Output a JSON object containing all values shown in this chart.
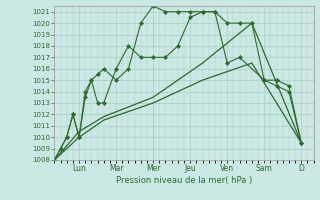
{
  "bg_color": "#cce8e4",
  "grid_color": "#aaccc8",
  "line_color": "#2d6a2d",
  "xlabel": "Pression niveau de la mer( hPa )",
  "ylim": [
    1008,
    1021.5
  ],
  "yticks": [
    1008,
    1009,
    1010,
    1011,
    1012,
    1013,
    1014,
    1015,
    1016,
    1017,
    1018,
    1019,
    1020,
    1021
  ],
  "day_labels": [
    "Lun",
    "Mar",
    "Mer",
    "Jeu",
    "Ven",
    "Sam",
    "D"
  ],
  "day_positions": [
    24,
    60,
    96,
    132,
    168,
    204,
    240
  ],
  "xlim": [
    0,
    252
  ],
  "series": [
    {
      "x": [
        0,
        6,
        12,
        18,
        24,
        30,
        36,
        42,
        48,
        60,
        72,
        84,
        96,
        108,
        120,
        132,
        144,
        156,
        168,
        180,
        192,
        204,
        216,
        228,
        240
      ],
      "y": [
        1008,
        1009,
        1010,
        1012,
        1010,
        1014,
        1015,
        1013,
        1013,
        1016,
        1018,
        1017,
        1017,
        1017,
        1018,
        1020.5,
        1021,
        1021,
        1020,
        1020,
        1020,
        1015,
        1015,
        1014.5,
        1009.5
      ],
      "marker": "D",
      "markersize": 2.0,
      "linewidth": 0.8
    },
    {
      "x": [
        0,
        6,
        12,
        18,
        24,
        30,
        36,
        42,
        48,
        60,
        72,
        84,
        96,
        108,
        120,
        132,
        144,
        156,
        168,
        180,
        204,
        216,
        228,
        240
      ],
      "y": [
        1008,
        1009,
        1010,
        1012,
        1010,
        1013.5,
        1015,
        1015.5,
        1016,
        1015,
        1016,
        1020,
        1021.5,
        1021,
        1021,
        1021,
        1021,
        1021,
        1016.5,
        1017,
        1015,
        1014.5,
        1014,
        1009.5
      ],
      "marker": "D",
      "markersize": 2.0,
      "linewidth": 0.8
    },
    {
      "x": [
        0,
        24,
        48,
        96,
        144,
        192,
        240
      ],
      "y": [
        1008,
        1010,
        1011.5,
        1013,
        1015,
        1016.5,
        1009.5
      ],
      "marker": null,
      "markersize": 0,
      "linewidth": 0.9
    },
    {
      "x": [
        0,
        24,
        48,
        96,
        144,
        192,
        240
      ],
      "y": [
        1008,
        1010.5,
        1011.8,
        1013.5,
        1016.5,
        1020,
        1009.5
      ],
      "marker": null,
      "markersize": 0,
      "linewidth": 0.9
    }
  ]
}
